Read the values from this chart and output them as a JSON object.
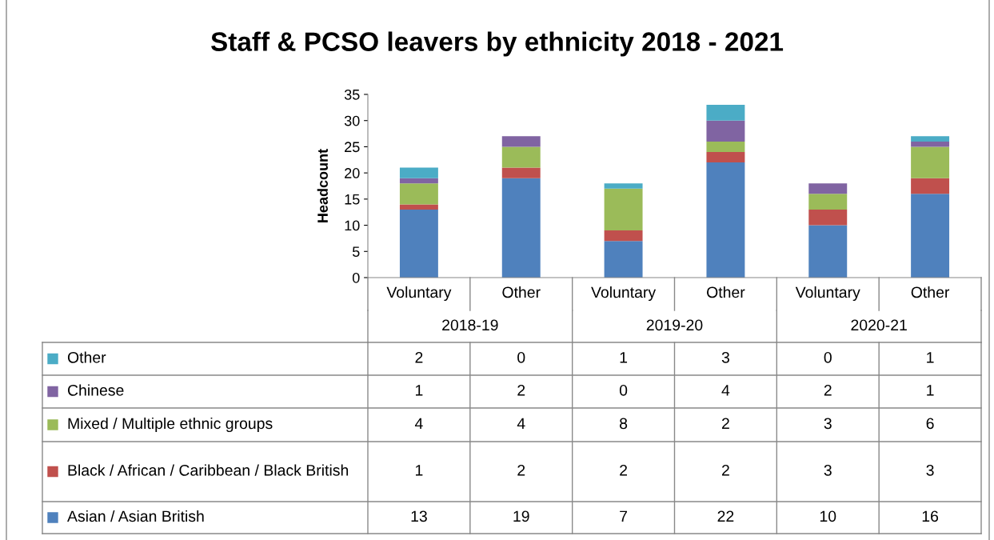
{
  "chart_data": {
    "type": "bar",
    "title": "Staff & PCSO leavers by ethnicity 2018 - 2021",
    "ylabel": "Headcount",
    "categories": [
      "Voluntary",
      "Other",
      "Voluntary",
      "Other",
      "Voluntary",
      "Other"
    ],
    "annotations": [
      "2018-19",
      "2019-20",
      "2020-21"
    ],
    "stacked": true,
    "series": [
      {
        "name": "Asian / Asian British",
        "color": "#4f81bd",
        "values": [
          13,
          19,
          7,
          22,
          10,
          16
        ]
      },
      {
        "name": "Black / African / Caribbean / Black British",
        "color": "#c0504d",
        "values": [
          1,
          2,
          2,
          2,
          3,
          3
        ]
      },
      {
        "name": "Mixed / Multiple ethnic groups",
        "color": "#9bbb59",
        "values": [
          4,
          4,
          8,
          2,
          3,
          6
        ]
      },
      {
        "name": "Chinese",
        "color": "#8064a2",
        "values": [
          1,
          2,
          0,
          4,
          2,
          1
        ]
      },
      {
        "name": "Other",
        "color": "#4bacc6",
        "values": [
          2,
          0,
          1,
          3,
          0,
          1
        ]
      }
    ],
    "ylim": [
      0,
      35
    ],
    "yticks": [
      0,
      5,
      10,
      15,
      20,
      25,
      30,
      35
    ],
    "data_labels": true,
    "legend": "bottom",
    "grid": false
  }
}
